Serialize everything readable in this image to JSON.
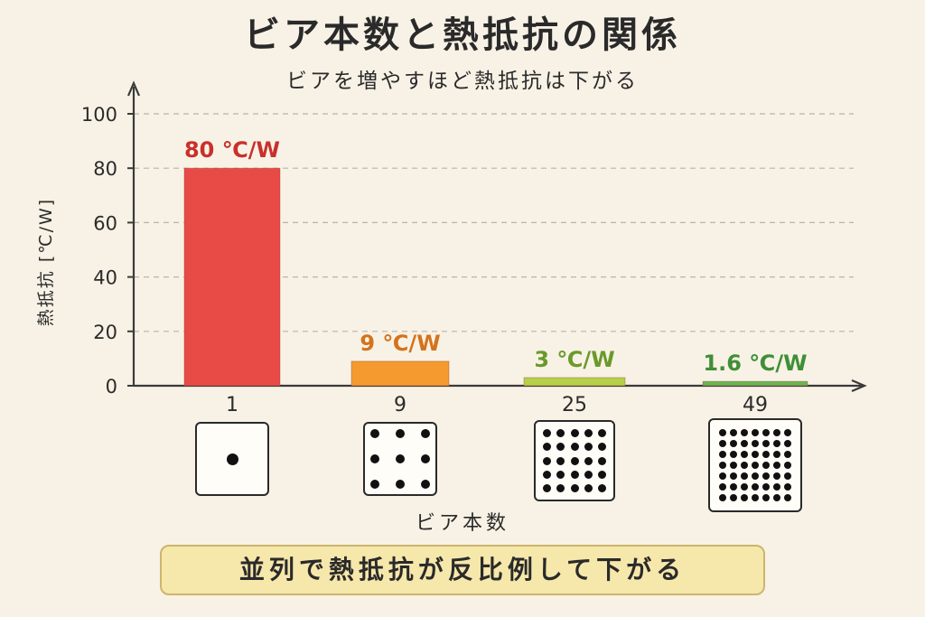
{
  "title": "ビア本数と熱抵抗の関係",
  "subtitle": "ビアを増やすほど熱抵抗は下がる",
  "conclusion": "並列で熱抵抗が反比例して下がる",
  "chart_data": {
    "type": "bar",
    "xlabel": "ビア本数",
    "ylabel": "熱抵抗 [℃/W]",
    "categories": [
      "1",
      "9",
      "25",
      "49"
    ],
    "values": [
      80,
      9,
      3,
      1.6
    ],
    "data_labels": [
      "80 ℃/W",
      "9 ℃/W",
      "3 ℃/W",
      "1.6 ℃/W"
    ],
    "colors": [
      "#e84a45",
      "#f59a2e",
      "#b5d04a",
      "#6ab552"
    ],
    "label_colors": [
      "#c9302c",
      "#d4731c",
      "#6a9a2a",
      "#3f8f36"
    ],
    "ylim": [
      0,
      100
    ],
    "yticks": [
      0,
      20,
      40,
      60,
      80,
      100
    ],
    "grid": true,
    "via_grids": [
      1,
      3,
      5,
      7
    ]
  }
}
